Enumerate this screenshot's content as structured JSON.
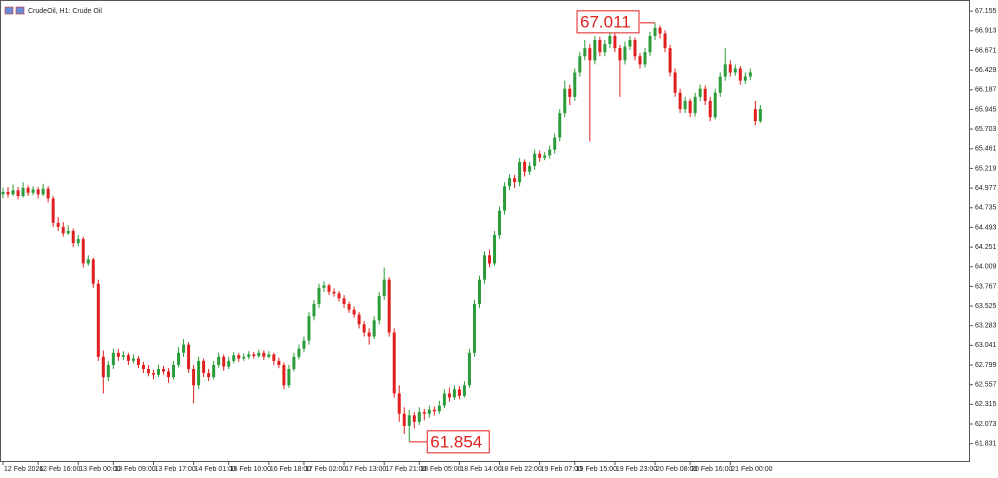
{
  "chart_data": {
    "type": "candlestick",
    "title": "CrudeOil, H1:  Crude Oil",
    "up_color": "#2a9d3a",
    "down_color": "#e0201e",
    "mark_extremes": true,
    "ylim": [
      61.618,
      67.28
    ],
    "yticks": [
      67.155,
      66.913,
      66.671,
      66.429,
      66.187,
      65.945,
      65.703,
      65.461,
      65.219,
      64.977,
      64.735,
      64.493,
      64.251,
      64.009,
      63.767,
      63.525,
      63.283,
      63.041,
      62.799,
      62.557,
      62.315,
      62.073,
      61.831
    ],
    "xlim": [
      -0.4,
      192.6
    ],
    "xticks": [
      {
        "value": 0,
        "label": "12 Feb 2026"
      },
      {
        "value": 7,
        "label": "12 Feb 16:00"
      },
      {
        "value": 15,
        "label": "13 Feb 00:00"
      },
      {
        "value": 22,
        "label": "13 Feb 09:00"
      },
      {
        "value": 30,
        "label": "13 Feb 17:00"
      },
      {
        "value": 38,
        "label": "14 Feb 01:00"
      },
      {
        "value": 45,
        "label": "16 Feb 10:00"
      },
      {
        "value": 53,
        "label": "16 Feb 18:00"
      },
      {
        "value": 60,
        "label": "17 Feb 02:00"
      },
      {
        "value": 68,
        "label": "17 Feb 13:00"
      },
      {
        "value": 76,
        "label": "17 Feb 21:00"
      },
      {
        "value": 83,
        "label": "18 Feb 05:00"
      },
      {
        "value": 91,
        "label": "18 Feb 14:00"
      },
      {
        "value": 99,
        "label": "18 Feb 22:00"
      },
      {
        "value": 107,
        "label": "19 Feb 07:00"
      },
      {
        "value": 114,
        "label": "19 Feb 15:00"
      },
      {
        "value": 122,
        "label": "19 Feb 23:00"
      },
      {
        "value": 130,
        "label": "20 Feb 08:00"
      },
      {
        "value": 137,
        "label": "20 Feb 16:00"
      },
      {
        "value": 145,
        "label": "21 Feb 00:00"
      }
    ],
    "ohlc": [
      [
        64.9,
        64.98,
        64.85,
        64.93
      ],
      [
        64.93,
        64.99,
        64.86,
        64.9
      ],
      [
        64.9,
        65.02,
        64.88,
        64.95
      ],
      [
        64.95,
        64.99,
        64.84,
        64.88
      ],
      [
        64.88,
        65.05,
        64.86,
        64.98
      ],
      [
        64.98,
        65.01,
        64.88,
        64.92
      ],
      [
        64.92,
        65.0,
        64.89,
        64.96
      ],
      [
        64.96,
        64.99,
        64.85,
        64.9
      ],
      [
        64.9,
        65.03,
        64.88,
        64.97
      ],
      [
        64.97,
        65.0,
        64.8,
        64.85
      ],
      [
        64.85,
        64.88,
        64.5,
        64.55
      ],
      [
        64.55,
        64.62,
        64.45,
        64.5
      ],
      [
        64.5,
        64.56,
        64.38,
        64.42
      ],
      [
        64.42,
        64.52,
        64.4,
        64.45
      ],
      [
        64.45,
        64.48,
        64.25,
        64.3
      ],
      [
        64.3,
        64.4,
        64.26,
        64.35
      ],
      [
        64.35,
        64.38,
        64.0,
        64.05
      ],
      [
        64.05,
        64.15,
        64.02,
        64.1
      ],
      [
        64.1,
        64.12,
        63.75,
        63.8
      ],
      [
        63.8,
        63.85,
        62.85,
        62.9
      ],
      [
        62.9,
        62.98,
        62.45,
        62.65
      ],
      [
        62.65,
        62.85,
        62.6,
        62.8
      ],
      [
        62.8,
        63.0,
        62.75,
        62.95
      ],
      [
        62.95,
        63.0,
        62.85,
        62.9
      ],
      [
        62.9,
        62.97,
        62.86,
        62.92
      ],
      [
        62.92,
        62.95,
        62.8,
        62.85
      ],
      [
        62.85,
        62.93,
        62.82,
        62.88
      ],
      [
        62.88,
        62.91,
        62.76,
        62.8
      ],
      [
        62.8,
        62.84,
        62.7,
        62.75
      ],
      [
        62.75,
        62.8,
        62.66,
        62.7
      ],
      [
        62.7,
        62.74,
        62.62,
        62.68
      ],
      [
        62.68,
        62.8,
        62.65,
        62.75
      ],
      [
        62.75,
        62.79,
        62.68,
        62.72
      ],
      [
        62.72,
        62.76,
        62.58,
        62.65
      ],
      [
        62.65,
        62.85,
        62.62,
        62.8
      ],
      [
        62.8,
        63.02,
        62.77,
        62.95
      ],
      [
        62.95,
        63.12,
        62.9,
        63.05
      ],
      [
        63.05,
        63.08,
        62.7,
        62.75
      ],
      [
        62.75,
        62.8,
        62.33,
        62.55
      ],
      [
        62.55,
        62.9,
        62.5,
        62.85
      ],
      [
        62.85,
        62.88,
        62.65,
        62.7
      ],
      [
        62.7,
        62.75,
        62.6,
        62.65
      ],
      [
        62.65,
        62.85,
        62.62,
        62.8
      ],
      [
        62.8,
        62.95,
        62.77,
        62.9
      ],
      [
        62.9,
        62.93,
        62.73,
        62.78
      ],
      [
        62.78,
        62.9,
        62.75,
        62.85
      ],
      [
        62.85,
        62.96,
        62.82,
        62.92
      ],
      [
        62.92,
        62.95,
        62.84,
        62.88
      ],
      [
        62.88,
        62.94,
        62.85,
        62.9
      ],
      [
        62.9,
        62.97,
        62.87,
        62.93
      ],
      [
        62.93,
        62.96,
        62.88,
        62.91
      ],
      [
        62.91,
        62.99,
        62.89,
        62.95
      ],
      [
        62.95,
        62.98,
        62.86,
        62.9
      ],
      [
        62.9,
        62.97,
        62.88,
        62.93
      ],
      [
        62.93,
        62.95,
        62.8,
        62.85
      ],
      [
        62.85,
        62.89,
        62.76,
        62.8
      ],
      [
        62.8,
        62.83,
        62.5,
        62.55
      ],
      [
        62.55,
        62.8,
        62.52,
        62.75
      ],
      [
        62.75,
        62.95,
        62.72,
        62.9
      ],
      [
        62.9,
        63.05,
        62.87,
        63.0
      ],
      [
        63.0,
        63.15,
        62.96,
        63.1
      ],
      [
        63.1,
        63.45,
        63.05,
        63.4
      ],
      [
        63.4,
        63.6,
        63.35,
        63.55
      ],
      [
        63.55,
        63.8,
        63.5,
        63.75
      ],
      [
        63.75,
        63.83,
        63.7,
        63.78
      ],
      [
        63.78,
        63.8,
        63.66,
        63.7
      ],
      [
        63.7,
        63.74,
        63.64,
        63.68
      ],
      [
        63.68,
        63.71,
        63.58,
        63.62
      ],
      [
        63.62,
        63.66,
        63.5,
        63.55
      ],
      [
        63.55,
        63.58,
        63.44,
        63.48
      ],
      [
        63.48,
        63.52,
        63.38,
        63.42
      ],
      [
        63.42,
        63.45,
        63.25,
        63.3
      ],
      [
        63.3,
        63.34,
        63.15,
        63.2
      ],
      [
        63.2,
        63.25,
        63.05,
        63.15
      ],
      [
        63.15,
        63.4,
        63.12,
        63.35
      ],
      [
        63.35,
        63.7,
        63.3,
        63.65
      ],
      [
        63.65,
        64.0,
        63.6,
        63.85
      ],
      [
        63.85,
        63.88,
        63.15,
        63.2
      ],
      [
        63.2,
        63.25,
        62.4,
        62.45
      ],
      [
        62.45,
        62.55,
        62.1,
        62.2
      ],
      [
        62.2,
        62.28,
        61.95,
        62.05
      ],
      [
        62.05,
        62.25,
        61.854,
        62.18
      ],
      [
        62.18,
        62.22,
        62.02,
        62.1
      ],
      [
        62.1,
        62.28,
        62.06,
        62.22
      ],
      [
        62.22,
        62.26,
        62.12,
        62.2
      ],
      [
        62.2,
        62.3,
        62.15,
        62.25
      ],
      [
        62.25,
        62.29,
        62.18,
        62.23
      ],
      [
        62.23,
        62.36,
        62.2,
        62.3
      ],
      [
        62.3,
        62.5,
        62.27,
        62.45
      ],
      [
        62.45,
        62.52,
        62.35,
        62.4
      ],
      [
        62.4,
        62.55,
        62.37,
        62.5
      ],
      [
        62.5,
        62.54,
        62.38,
        62.42
      ],
      [
        62.42,
        62.6,
        62.4,
        62.55
      ],
      [
        62.55,
        63.0,
        62.52,
        62.95
      ],
      [
        62.95,
        63.6,
        62.9,
        63.55
      ],
      [
        63.55,
        63.9,
        63.5,
        63.85
      ],
      [
        63.85,
        64.2,
        63.8,
        64.15
      ],
      [
        64.15,
        64.22,
        64.0,
        64.05
      ],
      [
        64.05,
        64.45,
        64.02,
        64.4
      ],
      [
        64.4,
        64.75,
        64.35,
        64.7
      ],
      [
        64.7,
        65.05,
        64.65,
        65.0
      ],
      [
        65.0,
        65.15,
        64.95,
        65.1
      ],
      [
        65.1,
        65.14,
        64.98,
        65.05
      ],
      [
        65.05,
        65.35,
        65.0,
        65.3
      ],
      [
        65.3,
        65.33,
        65.12,
        65.18
      ],
      [
        65.18,
        65.3,
        65.14,
        65.25
      ],
      [
        65.25,
        65.45,
        65.2,
        65.4
      ],
      [
        65.4,
        65.44,
        65.3,
        65.35
      ],
      [
        65.35,
        65.42,
        65.32,
        65.38
      ],
      [
        65.38,
        65.5,
        65.34,
        65.45
      ],
      [
        65.45,
        65.65,
        65.4,
        65.6
      ],
      [
        65.6,
        65.95,
        65.55,
        65.9
      ],
      [
        65.9,
        66.3,
        65.85,
        66.2
      ],
      [
        66.2,
        66.25,
        66.0,
        66.1
      ],
      [
        66.1,
        66.45,
        66.05,
        66.4
      ],
      [
        66.4,
        66.65,
        66.35,
        66.6
      ],
      [
        66.6,
        66.8,
        66.55,
        66.7
      ],
      [
        66.7,
        66.75,
        65.55,
        66.55
      ],
      [
        66.55,
        66.85,
        66.5,
        66.8
      ],
      [
        66.8,
        66.84,
        66.6,
        66.65
      ],
      [
        66.65,
        66.8,
        66.6,
        66.75
      ],
      [
        66.75,
        66.92,
        66.7,
        66.85
      ],
      [
        66.85,
        66.88,
        66.65,
        66.7
      ],
      [
        66.7,
        66.74,
        66.1,
        66.55
      ],
      [
        66.55,
        66.78,
        66.5,
        66.72
      ],
      [
        66.72,
        66.85,
        66.68,
        66.8
      ],
      [
        66.8,
        66.83,
        66.55,
        66.6
      ],
      [
        66.6,
        66.64,
        66.45,
        66.5
      ],
      [
        66.5,
        66.7,
        66.46,
        66.65
      ],
      [
        66.65,
        66.9,
        66.6,
        66.85
      ],
      [
        66.85,
        67.011,
        66.8,
        66.95
      ],
      [
        66.95,
        66.98,
        66.82,
        66.88
      ],
      [
        66.88,
        66.92,
        66.65,
        66.7
      ],
      [
        66.7,
        66.74,
        66.35,
        66.4
      ],
      [
        66.4,
        66.45,
        66.1,
        66.15
      ],
      [
        66.15,
        66.2,
        65.9,
        65.95
      ],
      [
        65.95,
        66.1,
        65.9,
        66.05
      ],
      [
        66.05,
        66.08,
        65.85,
        65.9
      ],
      [
        65.9,
        66.15,
        65.86,
        66.1
      ],
      [
        66.1,
        66.25,
        66.05,
        66.2
      ],
      [
        66.2,
        66.24,
        66.0,
        66.05
      ],
      [
        66.05,
        66.1,
        65.8,
        65.85
      ],
      [
        65.85,
        66.2,
        65.82,
        66.15
      ],
      [
        66.15,
        66.4,
        66.1,
        66.35
      ],
      [
        66.35,
        66.7,
        66.3,
        66.5
      ],
      [
        66.5,
        66.55,
        66.35,
        66.4
      ],
      [
        66.4,
        66.5,
        66.36,
        66.45
      ],
      [
        66.45,
        66.48,
        66.25,
        66.3
      ],
      [
        66.3,
        66.4,
        66.26,
        66.35
      ],
      [
        66.35,
        66.45,
        66.31,
        66.4
      ],
      [
        65.95,
        66.05,
        65.75,
        65.8
      ],
      [
        65.8,
        66.0,
        65.78,
        65.95
      ]
    ]
  }
}
